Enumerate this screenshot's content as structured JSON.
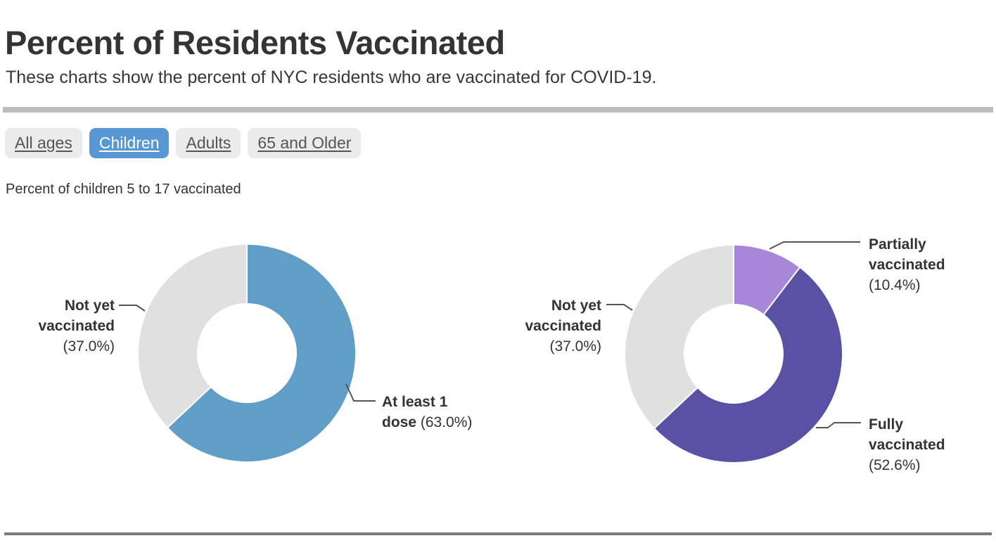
{
  "page": {
    "title": "Percent of Residents Vaccinated",
    "subtitle": "These charts show the percent of NYC residents who are vaccinated for COVID-19.",
    "caption": "Percent of children 5 to 17 vaccinated"
  },
  "tabs": [
    {
      "label": "All ages",
      "selected": false
    },
    {
      "label": "Children",
      "selected": true
    },
    {
      "label": "Adults",
      "selected": false
    },
    {
      "label": "65 and Older",
      "selected": false
    }
  ],
  "colors": {
    "accent_tab_blue": "#5697d4",
    "slice_blue": "#609dc7",
    "slice_light_purple": "#a687d8",
    "slice_dark_purple": "#5a51a5",
    "slice_gray": "#e0e0e0",
    "text_dark": "#333333",
    "leader_line": "#555555",
    "rule_top": "#bcbcbc",
    "rule_bottom": "#7a7a7a"
  },
  "chart_data": [
    {
      "type": "pie",
      "subtype": "donut",
      "title": "Percent of children 5 to 17 vaccinated — at least 1 dose",
      "start_angle_deg": 0,
      "direction": "clockwise",
      "inner_radius_ratio": 0.45,
      "legend": "callout-labels",
      "slices": [
        {
          "label": "At least 1 dose",
          "value": 63.0,
          "color": "#609dc7"
        },
        {
          "label": "Not yet vaccinated",
          "value": 37.0,
          "color": "#e0e0e0"
        }
      ]
    },
    {
      "type": "pie",
      "subtype": "donut",
      "title": "Percent of children 5 to 17 vaccinated — partially vs fully",
      "start_angle_deg": 0,
      "direction": "clockwise",
      "inner_radius_ratio": 0.45,
      "legend": "callout-labels",
      "slices": [
        {
          "label": "Partially vaccinated",
          "value": 10.4,
          "color": "#a687d8"
        },
        {
          "label": "Fully vaccinated",
          "value": 52.6,
          "color": "#5a51a5"
        },
        {
          "label": "Not yet vaccinated",
          "value": 37.0,
          "color": "#e0e0e0"
        }
      ]
    }
  ],
  "callouts": {
    "left_not_yet": {
      "line1": "Not yet",
      "line2": "vaccinated",
      "pct": "(37.0%)"
    },
    "left_dose": {
      "line1": "At least 1",
      "line2_bold": "dose",
      "line2_pct": " (63.0%)"
    },
    "right_partial": {
      "line1": "Partially",
      "line2": "vaccinated",
      "pct": "(10.4%)"
    },
    "right_not_yet": {
      "line1": "Not yet",
      "line2": "vaccinated",
      "pct": "(37.0%)"
    },
    "right_full": {
      "line1": "Fully",
      "line2": "vaccinated",
      "pct": "(52.6%)"
    }
  }
}
